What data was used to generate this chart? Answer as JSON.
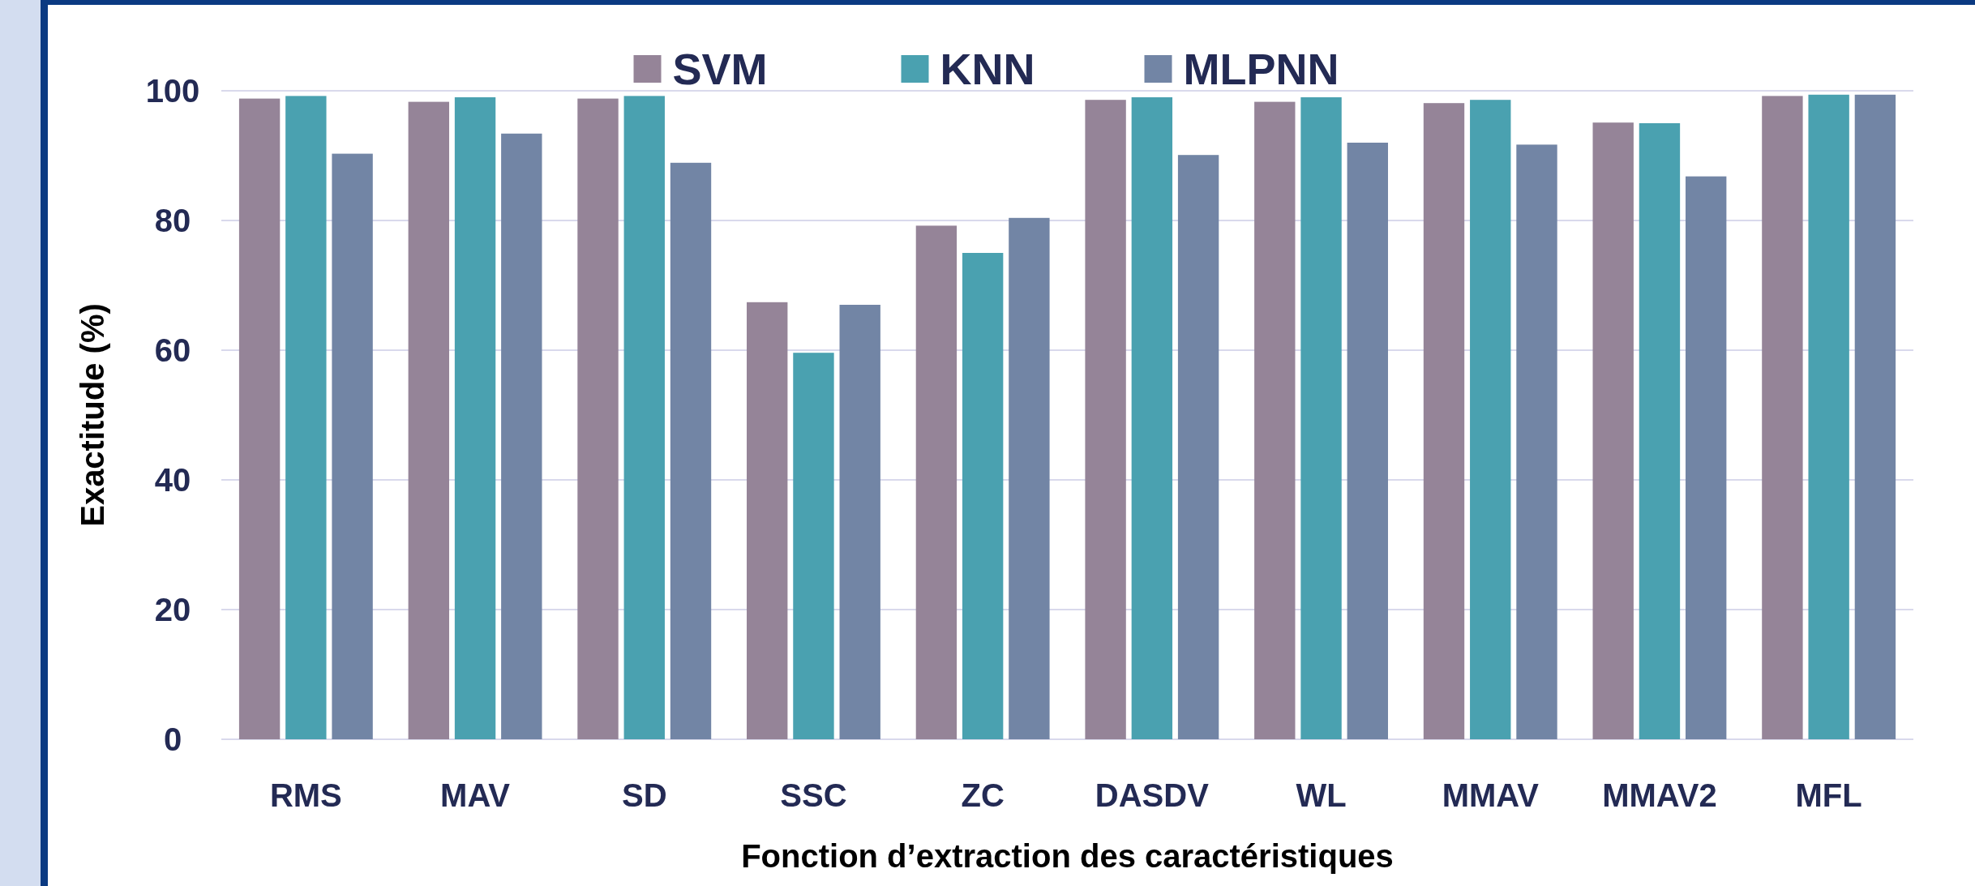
{
  "chart_data": {
    "type": "bar",
    "xlabel": "Fonction d’extraction des caractéristiques",
    "ylabel": "Exactitude (%)",
    "categories": [
      "RMS",
      "MAV",
      "SD",
      "SSC",
      "ZC",
      "DASDV",
      "WL",
      "MMAV",
      "MMAV2",
      "MFL"
    ],
    "series": [
      {
        "name": "SVM",
        "color": "#958498",
        "values": [
          98.8,
          98.3,
          98.8,
          67.4,
          79.2,
          98.6,
          98.3,
          98.1,
          95.1,
          99.2
        ]
      },
      {
        "name": "KNN",
        "color": "#4aa1b0",
        "values": [
          99.2,
          99.0,
          99.2,
          59.6,
          75.0,
          99.0,
          99.0,
          98.6,
          95.0,
          99.4
        ]
      },
      {
        "name": "MLPNN",
        "color": "#7285a5",
        "values": [
          90.3,
          93.4,
          88.9,
          67.0,
          80.4,
          90.1,
          92.0,
          91.7,
          86.8,
          99.4
        ]
      }
    ],
    "ylim": [
      0,
      100
    ],
    "yticks": [
      0,
      20,
      40,
      60,
      80,
      100
    ],
    "grid": "y",
    "legend": "top"
  }
}
